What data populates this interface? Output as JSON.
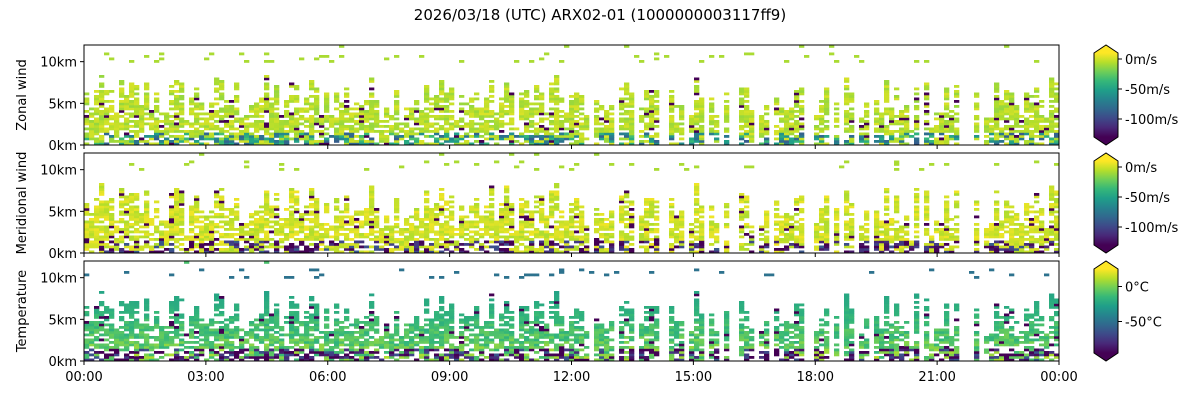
{
  "chart_data": {
    "type": "heatmap",
    "title": "2026/03/18 (UTC) ARX02-01 (1000000003117ff9)",
    "x_range": [
      "00:00",
      "24:00"
    ],
    "x_tick_labels": [
      "00:00",
      "03:00",
      "06:00",
      "09:00",
      "12:00",
      "15:00",
      "18:00",
      "21:00",
      "00:00"
    ],
    "panels": [
      {
        "ylabel": "Zonal wind",
        "ylim_km": [
          0,
          12
        ],
        "y_ticks_km": [
          0,
          5,
          10
        ],
        "y_tick_labels": [
          "0km",
          "5km",
          "10km"
        ],
        "colorbar": {
          "range": [
            -130,
            10
          ],
          "ticks": [
            0,
            -50,
            -100
          ],
          "tick_labels": [
            "0m/s",
            "-50m/s",
            "-100m/s"
          ],
          "extend": "both"
        },
        "typical_value": -5,
        "low_level_value": -60
      },
      {
        "ylabel": "Meridional wind",
        "ylim_km": [
          0,
          12
        ],
        "y_ticks_km": [
          0,
          5,
          10
        ],
        "y_tick_labels": [
          "0km",
          "5km",
          "10km"
        ],
        "colorbar": {
          "range": [
            -130,
            10
          ],
          "ticks": [
            0,
            -50,
            -100
          ],
          "tick_labels": [
            "0m/s",
            "-50m/s",
            "-100m/s"
          ],
          "extend": "both"
        },
        "typical_value": 0,
        "low_level_value": -120
      },
      {
        "ylabel": "Temperature",
        "ylim_km": [
          0,
          12
        ],
        "y_ticks_km": [
          0,
          5,
          10
        ],
        "y_tick_labels": [
          "0km",
          "5km",
          "10km"
        ],
        "colorbar": {
          "range": [
            -95,
            25
          ],
          "ticks": [
            0,
            -50
          ],
          "tick_labels": [
            "0°C",
            "-50°C"
          ],
          "extend": "both"
        },
        "typical_value": 0,
        "low_level_value": -90
      }
    ]
  }
}
